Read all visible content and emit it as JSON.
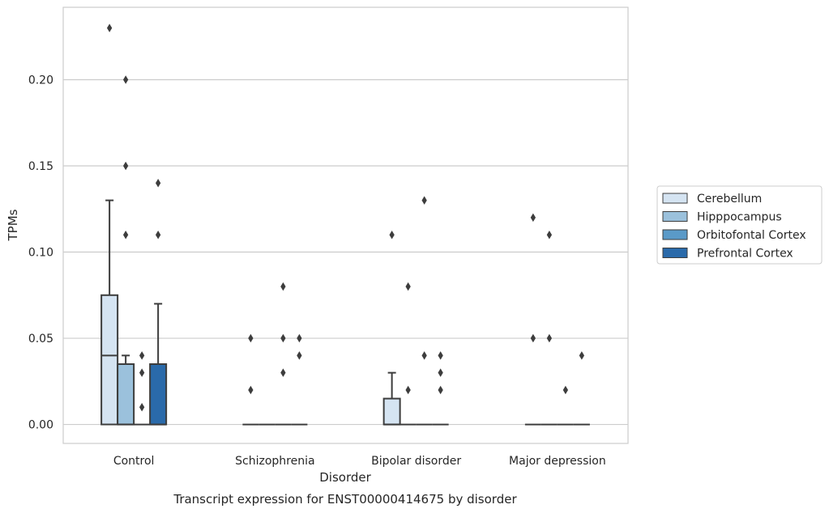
{
  "chart_data": {
    "type": "boxplot",
    "title": "Transcript expression for ENST00000414675 by disorder",
    "xlabel": "Disorder",
    "ylabel": "TPMs",
    "ylim": [
      -0.011,
      0.242
    ],
    "yticks": [
      0.0,
      0.05,
      0.1,
      0.15,
      0.2
    ],
    "ytick_labels": [
      "0.00",
      "0.05",
      "0.10",
      "0.15",
      "0.20"
    ],
    "grid": "horizontal",
    "legend_position": "right",
    "categories": [
      "Control",
      "Schizophrenia",
      "Bipolar disorder",
      "Major depression"
    ],
    "series": [
      {
        "name": "Cerebellum",
        "color": "#d5e4f2",
        "boxes": [
          {
            "q1": 0.0,
            "median": 0.04,
            "q3": 0.075,
            "whisker_low": 0.0,
            "whisker_high": 0.13,
            "outliers": [
              0.23
            ]
          },
          {
            "q1": 0.0,
            "median": 0.0,
            "q3": 0.0,
            "whisker_low": 0.0,
            "whisker_high": 0.0,
            "outliers": [
              0.05,
              0.02
            ]
          },
          {
            "q1": 0.0,
            "median": 0.0,
            "q3": 0.015,
            "whisker_low": 0.0,
            "whisker_high": 0.03,
            "outliers": [
              0.11
            ]
          },
          {
            "q1": 0.0,
            "median": 0.0,
            "q3": 0.0,
            "whisker_low": 0.0,
            "whisker_high": 0.0,
            "outliers": [
              0.12,
              0.05
            ]
          }
        ]
      },
      {
        "name": "Hipppocampus",
        "color": "#9bc1dc",
        "boxes": [
          {
            "q1": 0.0,
            "median": 0.0,
            "q3": 0.035,
            "whisker_low": 0.0,
            "whisker_high": 0.04,
            "outliers": [
              0.2,
              0.15,
              0.11
            ]
          },
          {
            "q1": 0.0,
            "median": 0.0,
            "q3": 0.0,
            "whisker_low": 0.0,
            "whisker_high": 0.0,
            "outliers": []
          },
          {
            "q1": 0.0,
            "median": 0.0,
            "q3": 0.0,
            "whisker_low": 0.0,
            "whisker_high": 0.0,
            "outliers": [
              0.08,
              0.02
            ]
          },
          {
            "q1": 0.0,
            "median": 0.0,
            "q3": 0.0,
            "whisker_low": 0.0,
            "whisker_high": 0.0,
            "outliers": [
              0.11,
              0.05
            ]
          }
        ]
      },
      {
        "name": "Orbitofontal Cortex",
        "color": "#5a9ac8",
        "boxes": [
          {
            "q1": 0.0,
            "median": 0.0,
            "q3": 0.0,
            "whisker_low": 0.0,
            "whisker_high": 0.0,
            "outliers": [
              0.04,
              0.03,
              0.01
            ]
          },
          {
            "q1": 0.0,
            "median": 0.0,
            "q3": 0.0,
            "whisker_low": 0.0,
            "whisker_high": 0.0,
            "outliers": [
              0.08,
              0.05,
              0.03
            ]
          },
          {
            "q1": 0.0,
            "median": 0.0,
            "q3": 0.0,
            "whisker_low": 0.0,
            "whisker_high": 0.0,
            "outliers": [
              0.13,
              0.04
            ]
          },
          {
            "q1": 0.0,
            "median": 0.0,
            "q3": 0.0,
            "whisker_low": 0.0,
            "whisker_high": 0.0,
            "outliers": [
              0.02
            ]
          }
        ]
      },
      {
        "name": "Prefrontal Cortex",
        "color": "#2a6aaa",
        "boxes": [
          {
            "q1": 0.0,
            "median": 0.0,
            "q3": 0.035,
            "whisker_low": 0.0,
            "whisker_high": 0.07,
            "outliers": [
              0.14,
              0.11
            ]
          },
          {
            "q1": 0.0,
            "median": 0.0,
            "q3": 0.0,
            "whisker_low": 0.0,
            "whisker_high": 0.0,
            "outliers": [
              0.05,
              0.04
            ]
          },
          {
            "q1": 0.0,
            "median": 0.0,
            "q3": 0.0,
            "whisker_low": 0.0,
            "whisker_high": 0.0,
            "outliers": [
              0.04,
              0.03,
              0.02
            ]
          },
          {
            "q1": 0.0,
            "median": 0.0,
            "q3": 0.0,
            "whisker_low": 0.0,
            "whisker_high": 0.0,
            "outliers": [
              0.04
            ]
          }
        ]
      }
    ]
  }
}
